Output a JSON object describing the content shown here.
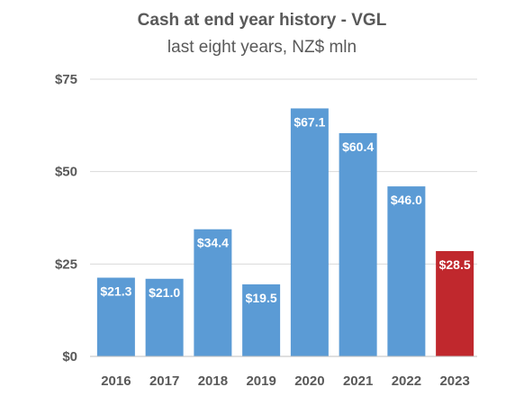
{
  "chart_data": {
    "type": "bar",
    "title": "Cash at end year history - VGL",
    "subtitle": "last eight years, NZ$ mln",
    "categories": [
      "2016",
      "2017",
      "2018",
      "2019",
      "2020",
      "2021",
      "2022",
      "2023"
    ],
    "values": [
      21.3,
      21.0,
      34.4,
      19.5,
      67.1,
      60.4,
      46.0,
      28.5
    ],
    "value_labels": [
      "$21.3",
      "$21.0",
      "$34.4",
      "$19.5",
      "$67.1",
      "$60.4",
      "$46.0",
      "$28.5"
    ],
    "ylim": [
      0,
      75
    ],
    "yticks": [
      0,
      25,
      50,
      75
    ],
    "ytick_labels": [
      "$0",
      "$25",
      "$50",
      "$75"
    ],
    "xlabel": "",
    "ylabel": "",
    "grid": true,
    "legend": "none",
    "colors": {
      "bar": "#5B9BD5",
      "highlight_bar": "#C0282D",
      "grid": "#D9D9D9",
      "axis": "#BFBFBF",
      "text": "#595959",
      "data_label": "#FFFFFF"
    },
    "highlight_index": 7
  }
}
